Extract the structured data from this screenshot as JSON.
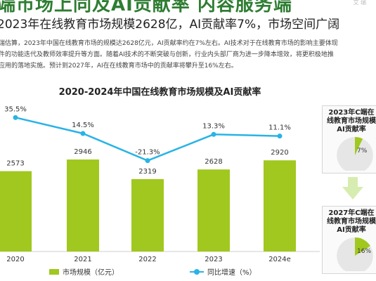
{
  "header": {
    "title": "端市场上同及AI贡献率 内容服务端",
    "corner": "艾 瑞",
    "subtitle": "2023年在线教育市场规模2628亿，AI贡献率7%，市场空间广阔",
    "desc_lines": [
      "瑞估算，2023年中国在线教育市场的规模达2628亿元，AI贡献率约在7%左右。AI技术对于在线教育市场的影响主要体现",
      "件的功能迭代及教师效率提升等方面。随着AI技术的不断突破与创新，行业内头部厂商为进一步降本增效，将更积极地推",
      "应用的落地实施。预计到2027年，AI在在线教育市场中的贡献率将攀升至16%左右。"
    ]
  },
  "chart_data": {
    "type": "bar",
    "title": "2020-2024年中国在线教育市场规模及AI贡献率",
    "categories": [
      "2020",
      "2021",
      "2022",
      "2023",
      "2024e"
    ],
    "series": [
      {
        "name": "市场规模（亿元）",
        "type": "bar",
        "values": [
          2573,
          2946,
          2319,
          2628,
          2920
        ]
      },
      {
        "name": "同比增速（%）",
        "type": "line",
        "values": [
          35.5,
          14.5,
          -21.3,
          13.3,
          11.1
        ]
      }
    ],
    "bar_labels": [
      "2573",
      "2946",
      "2319",
      "2628",
      "2920"
    ],
    "line_labels": [
      "35.5%",
      "14.5%",
      "-21.3%",
      "13.3%",
      "11.1%"
    ],
    "colors": {
      "bar": "#a0c81e",
      "line": "#29b3e6"
    },
    "legend_position": "bottom",
    "grid": false
  },
  "side_panels": [
    {
      "title": "2023年C端在线教育市场规模AI贡献率",
      "percent": 7,
      "label": "7%"
    },
    {
      "title": "2027年C端在线教育市场规模AI贡献率",
      "percent": 16,
      "label": "16%"
    }
  ]
}
